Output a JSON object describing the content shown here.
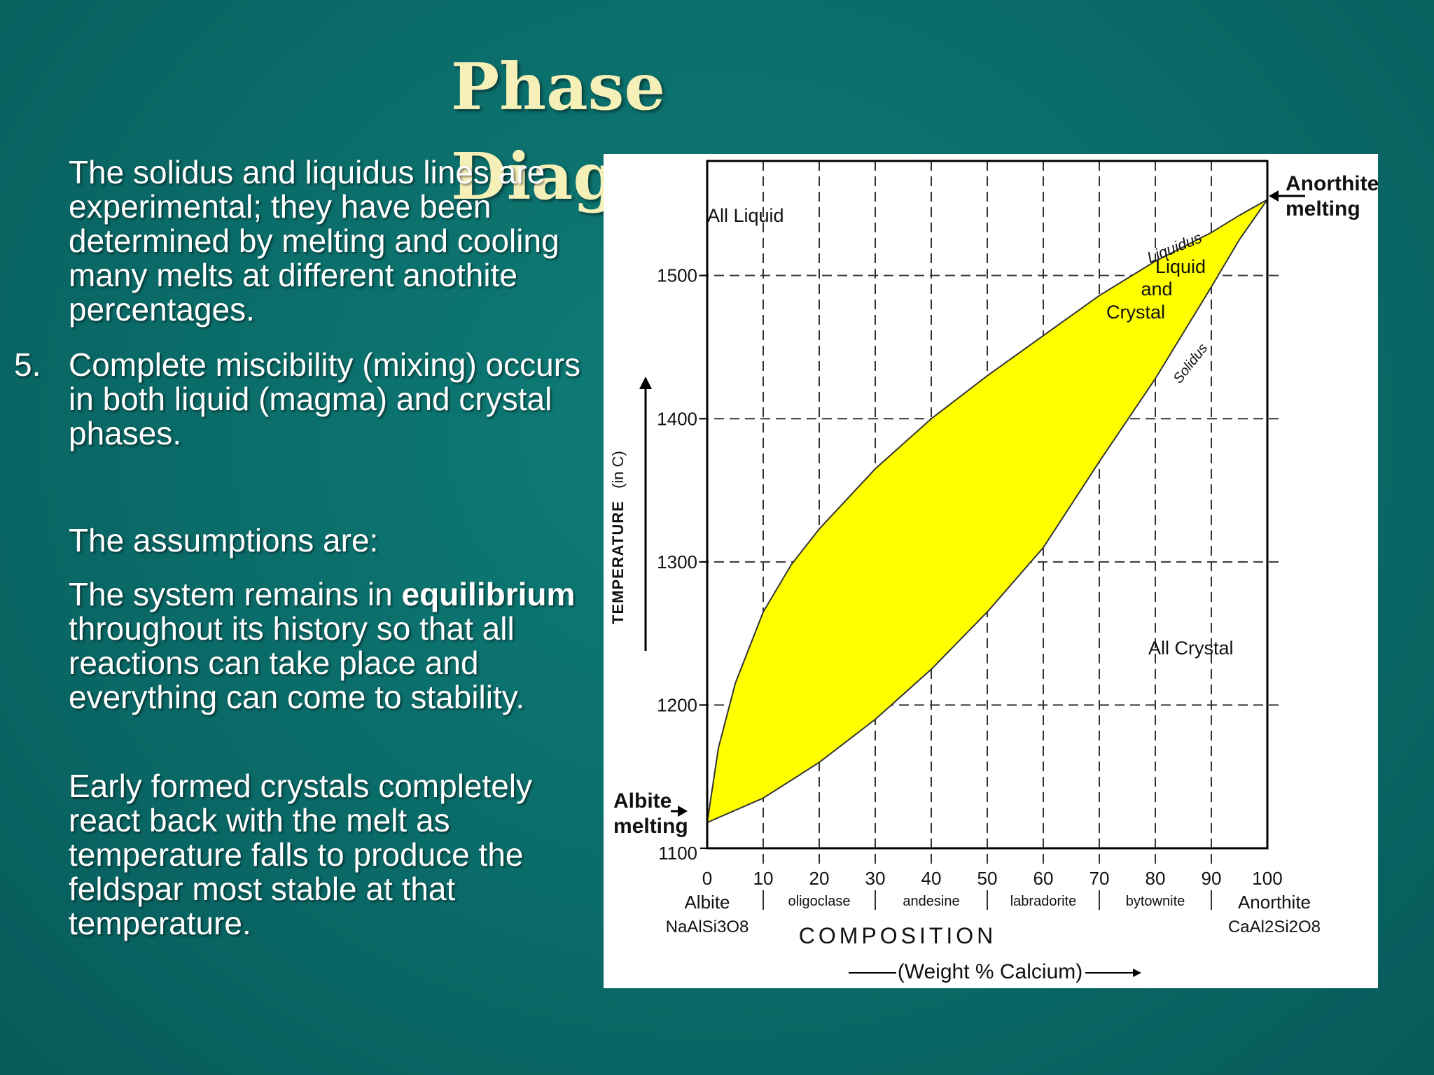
{
  "slide": {
    "title": "Phase Diag",
    "paragraphs": [
      {
        "number": "",
        "parts": [
          {
            "text": "The solidus and liquidus lines are experimental; they have been determined by melting and cooling many melts at different anothite percentages."
          }
        ]
      },
      {
        "number": "5.",
        "parts": [
          {
            "text": "Complete miscibility (mixing) occurs in both liquid (magma) and crystal phases."
          }
        ]
      },
      {
        "number": "",
        "parts": [
          {
            "text": "The assumptions are:"
          }
        ]
      },
      {
        "number": "",
        "parts": [
          {
            "text": "The system remains in "
          },
          {
            "text": "equilibrium",
            "bold": true
          },
          {
            "text": " throughout its history so that all reactions can take place and everything can come to stability."
          }
        ]
      },
      {
        "number": "",
        "parts": [
          {
            "text": "Early formed crystals completely react back with the melt as temperature falls to produce the feldspar most stable at that temperature."
          }
        ]
      }
    ]
  },
  "chart_data": {
    "type": "area",
    "title": "",
    "xlabel": "COMPOSITION",
    "xlabel_sub": "(Weight % Calcium)",
    "ylabel": "TEMPERATURE",
    "ylabel_unit": "(in C)",
    "xlim": [
      0,
      100
    ],
    "ylim": [
      1100,
      1580
    ],
    "x_ticks": [
      0,
      10,
      20,
      30,
      40,
      50,
      60,
      70,
      80,
      90,
      100
    ],
    "x_tick_labels": [
      "0",
      "10",
      "20",
      "30",
      "40",
      "50",
      "60",
      "70",
      "80",
      "90",
      "100"
    ],
    "y_ticks": [
      1100,
      1200,
      1300,
      1400,
      1500
    ],
    "y_tick_labels": [
      "1100",
      "1200",
      "1300",
      "1400",
      "1500"
    ],
    "grid": true,
    "fill_color": "#ffff00",
    "line_color": "#333333",
    "series": [
      {
        "name": "Liquidus",
        "x": [
          0,
          2,
          5,
          10,
          15,
          20,
          30,
          40,
          50,
          60,
          70,
          80,
          90,
          95,
          100
        ],
        "y": [
          1118,
          1170,
          1215,
          1265,
          1298,
          1323,
          1365,
          1400,
          1430,
          1458,
          1486,
          1510,
          1530,
          1542,
          1553
        ]
      },
      {
        "name": "Solidus",
        "x": [
          0,
          10,
          20,
          30,
          40,
          50,
          60,
          70,
          80,
          90,
          95,
          100
        ],
        "y": [
          1118,
          1135,
          1160,
          1190,
          1225,
          1265,
          1310,
          1370,
          1428,
          1492,
          1525,
          1553
        ]
      }
    ],
    "components": {
      "start": {
        "name": "Albite",
        "formula": "NaAlSi3O8"
      },
      "end": {
        "name": "Anorthite",
        "formula": "CaAl2Si2O8"
      }
    },
    "minerals": [
      {
        "name": "oligoclase",
        "x": 20
      },
      {
        "name": "andesine",
        "x": 40
      },
      {
        "name": "labradorite",
        "x": 60
      },
      {
        "name": "bytownite",
        "x": 80
      }
    ],
    "annotations": {
      "all_liquid": "All Liquid",
      "liquid_and_crystal": [
        "Liquid",
        "and",
        "Crystal"
      ],
      "all_crystal": "All  Crystal",
      "albite_melting": [
        "Albite",
        "melting"
      ],
      "anorthite_melting": [
        "Anorthite",
        "melting"
      ]
    }
  }
}
